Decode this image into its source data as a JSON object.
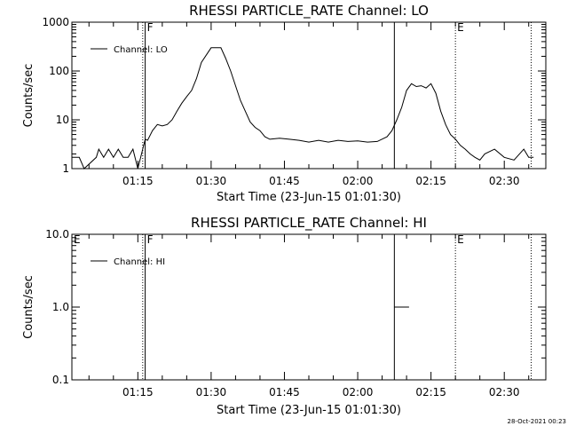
{
  "stamp": "28-Oct-2021 00:23",
  "chart_data": [
    {
      "type": "line",
      "title": "RHESSI PARTICLE_RATE Channel: LO",
      "xlabel": "Start Time (23-Jun-15 01:01:30)",
      "ylabel": "Counts/sec",
      "yscale": "log",
      "xlim": [
        "01:01:30",
        "02:38:30"
      ],
      "ylim": [
        1,
        1000
      ],
      "ytick_labels": [
        "1",
        "10",
        "100",
        "1000"
      ],
      "xticks": [
        "01:15",
        "01:30",
        "01:45",
        "02:00",
        "02:15",
        "02:30"
      ],
      "legend": "top-left",
      "series": [
        {
          "name": "Channel: LO",
          "x": [
            "01:01:30",
            "01:03:00",
            "01:04:00",
            "01:06:30",
            "01:07:00",
            "01:08:00",
            "01:09:00",
            "01:10:00",
            "01:11:00",
            "01:12:00",
            "01:13:00",
            "01:14:00",
            "01:15:00",
            "01:16:00",
            "01:16:30",
            "01:17:00",
            "01:18:00",
            "01:19:00",
            "01:20:00",
            "01:21:00",
            "01:22:00",
            "01:23:00",
            "01:24:00",
            "01:25:00",
            "01:26:00",
            "01:27:00",
            "01:28:00",
            "01:30:00",
            "01:32:00",
            "01:33:00",
            "01:34:00",
            "01:35:00",
            "01:36:00",
            "01:37:00",
            "01:38:00",
            "01:39:00",
            "01:40:00",
            "01:41:00",
            "01:42:00",
            "01:44:00",
            "01:46:00",
            "01:48:00",
            "01:50:00",
            "01:52:00",
            "01:54:00",
            "01:56:00",
            "01:58:00",
            "02:00:00",
            "02:02:00",
            "02:04:00",
            "02:06:00",
            "02:07:00",
            "02:08:00",
            "02:09:00",
            "02:10:00",
            "02:11:00",
            "02:12:00",
            "02:13:00",
            "02:14:00",
            "02:15:00",
            "02:16:00",
            "02:17:00",
            "02:18:00",
            "02:19:00",
            "02:20:00",
            "02:21:00",
            "02:22:00",
            "02:23:00",
            "02:24:00",
            "02:25:00",
            "02:26:00",
            "02:28:00",
            "02:30:00",
            "02:32:00",
            "02:34:00",
            "02:35:00",
            "02:36:00"
          ],
          "values": [
            1.7,
            1.7,
            1.0,
            1.7,
            2.5,
            1.7,
            2.5,
            1.7,
            2.5,
            1.7,
            1.7,
            2.5,
            1.0,
            2.5,
            4.0,
            3.8,
            6.0,
            8.0,
            7.5,
            8.0,
            10,
            15,
            22,
            30,
            40,
            70,
            150,
            300,
            300,
            180,
            100,
            50,
            25,
            15,
            9,
            7,
            6,
            4.5,
            4.0,
            4.2,
            4.0,
            3.8,
            3.5,
            3.8,
            3.5,
            3.8,
            3.6,
            3.7,
            3.5,
            3.6,
            4.5,
            6.0,
            10,
            18,
            40,
            55,
            48,
            50,
            45,
            55,
            35,
            15,
            8,
            5,
            4.0,
            3.0,
            2.5,
            2.0,
            1.7,
            1.5,
            2.0,
            2.5,
            1.7,
            1.5,
            2.5,
            1.7,
            1.7
          ]
        }
      ],
      "markers": [
        {
          "label": "",
          "time": "01:16:00",
          "style": "dotted"
        },
        {
          "label": "F",
          "time": "01:16:30",
          "style": "solid"
        },
        {
          "label": "",
          "time": "02:07:30",
          "style": "solid"
        },
        {
          "label": "E",
          "time": "02:20:00",
          "style": "dotted"
        },
        {
          "label": "",
          "time": "02:35:30",
          "style": "dotted"
        }
      ]
    },
    {
      "type": "line",
      "title": "RHESSI PARTICLE_RATE Channel: HI",
      "xlabel": "Start Time (23-Jun-15 01:01:30)",
      "ylabel": "Counts/sec",
      "yscale": "log",
      "xlim": [
        "01:01:30",
        "02:38:30"
      ],
      "ylim": [
        0.1,
        10
      ],
      "ytick_labels": [
        "0.1",
        "1.0",
        "10.0"
      ],
      "xticks": [
        "01:15",
        "01:30",
        "01:45",
        "02:00",
        "02:15",
        "02:30"
      ],
      "legend": "top-left",
      "series": [
        {
          "name": "Channel: HI",
          "x": [
            "02:07:30",
            "02:10:30"
          ],
          "values": [
            1.0,
            1.0
          ]
        }
      ],
      "markers": [
        {
          "label": "E",
          "time": "01:01:30",
          "style": "none"
        },
        {
          "label": "",
          "time": "01:16:00",
          "style": "dotted"
        },
        {
          "label": "F",
          "time": "01:16:30",
          "style": "solid"
        },
        {
          "label": "",
          "time": "02:07:30",
          "style": "solid"
        },
        {
          "label": "E",
          "time": "02:20:00",
          "style": "dotted"
        },
        {
          "label": "",
          "time": "02:35:30",
          "style": "dotted"
        }
      ]
    }
  ]
}
